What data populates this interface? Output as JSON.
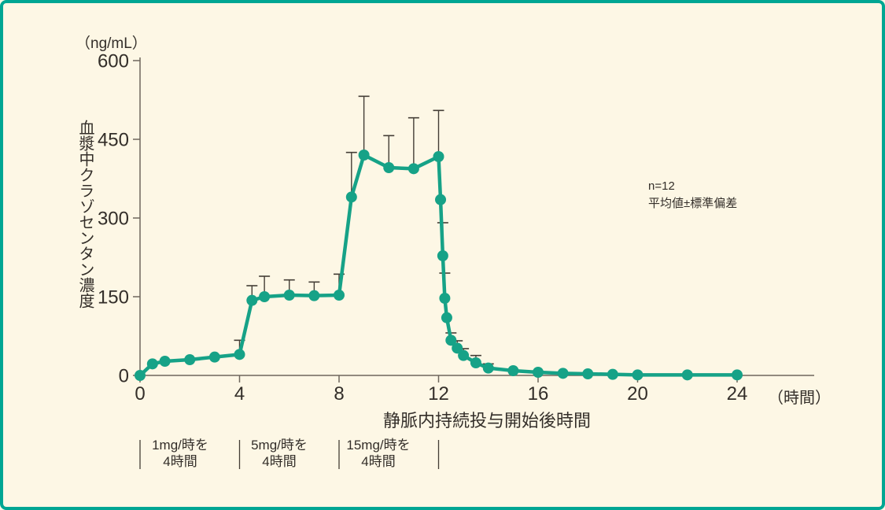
{
  "colors": {
    "background": "#FDF7E5",
    "frame": "#00A693",
    "line": "#16A287",
    "axis": "#6E675D",
    "error_bar": "#433D35",
    "text": "#332E29"
  },
  "chart_data": {
    "type": "line",
    "y_unit_label": "（ng/mL）",
    "ylabel": "血漿中クラゾセンタン濃度",
    "xlabel": "静脈内持続投与開始後時間",
    "x_unit_label": "（時間）",
    "annotation": {
      "line1": "n=12",
      "line2": "平均値±標準偏差"
    },
    "ylim": [
      0,
      600
    ],
    "yticks": [
      0,
      150,
      300,
      450,
      600
    ],
    "xlim": [
      0,
      24
    ],
    "xticks": [
      0,
      4,
      8,
      12,
      16,
      20,
      24
    ],
    "legend_position": "none",
    "grid": false,
    "error_bars": "upper-only",
    "series": [
      {
        "name": "血漿中クラゾセンタン濃度（平均値＋標準偏差）",
        "marker": "circle",
        "points": [
          {
            "t": 0,
            "v": 0,
            "sd": 0
          },
          {
            "t": 0.5,
            "v": 22,
            "sd": 0
          },
          {
            "t": 1,
            "v": 27,
            "sd": 0
          },
          {
            "t": 2,
            "v": 30,
            "sd": 0
          },
          {
            "t": 3,
            "v": 35,
            "sd": 0
          },
          {
            "t": 4,
            "v": 40,
            "sd": 27
          },
          {
            "t": 4.5,
            "v": 143,
            "sd": 28
          },
          {
            "t": 5,
            "v": 150,
            "sd": 39
          },
          {
            "t": 6,
            "v": 153,
            "sd": 29
          },
          {
            "t": 7,
            "v": 152,
            "sd": 26
          },
          {
            "t": 8,
            "v": 153,
            "sd": 40
          },
          {
            "t": 8.5,
            "v": 340,
            "sd": 85
          },
          {
            "t": 9,
            "v": 420,
            "sd": 112
          },
          {
            "t": 10,
            "v": 396,
            "sd": 61
          },
          {
            "t": 11,
            "v": 394,
            "sd": 97
          },
          {
            "t": 12,
            "v": 417,
            "sd": 88
          },
          {
            "t": 12.08,
            "v": 335,
            "sd": 0
          },
          {
            "t": 12.17,
            "v": 228,
            "sd": 63
          },
          {
            "t": 12.25,
            "v": 147,
            "sd": 48
          },
          {
            "t": 12.33,
            "v": 110,
            "sd": 0
          },
          {
            "t": 12.5,
            "v": 67,
            "sd": 14
          },
          {
            "t": 12.75,
            "v": 52,
            "sd": 14
          },
          {
            "t": 13,
            "v": 38,
            "sd": 13
          },
          {
            "t": 13.5,
            "v": 24,
            "sd": 14
          },
          {
            "t": 14,
            "v": 14,
            "sd": 8
          },
          {
            "t": 15,
            "v": 9,
            "sd": 0
          },
          {
            "t": 16,
            "v": 6,
            "sd": 0
          },
          {
            "t": 17,
            "v": 4,
            "sd": 0
          },
          {
            "t": 18,
            "v": 3,
            "sd": 0
          },
          {
            "t": 19,
            "v": 2,
            "sd": 0
          },
          {
            "t": 20,
            "v": 1,
            "sd": 0
          },
          {
            "t": 22,
            "v": 1,
            "sd": 0
          },
          {
            "t": 24,
            "v": 1,
            "sd": 0
          }
        ]
      }
    ],
    "dose_segments": [
      {
        "label_line1": "1mg/時を",
        "label_line2": "4時間",
        "t_start": 0,
        "t_end": 4
      },
      {
        "label_line1": "5mg/時を",
        "label_line2": "4時間",
        "t_start": 4,
        "t_end": 8
      },
      {
        "label_line1": "15mg/時を",
        "label_line2": "4時間",
        "t_start": 8,
        "t_end": 12
      }
    ]
  }
}
